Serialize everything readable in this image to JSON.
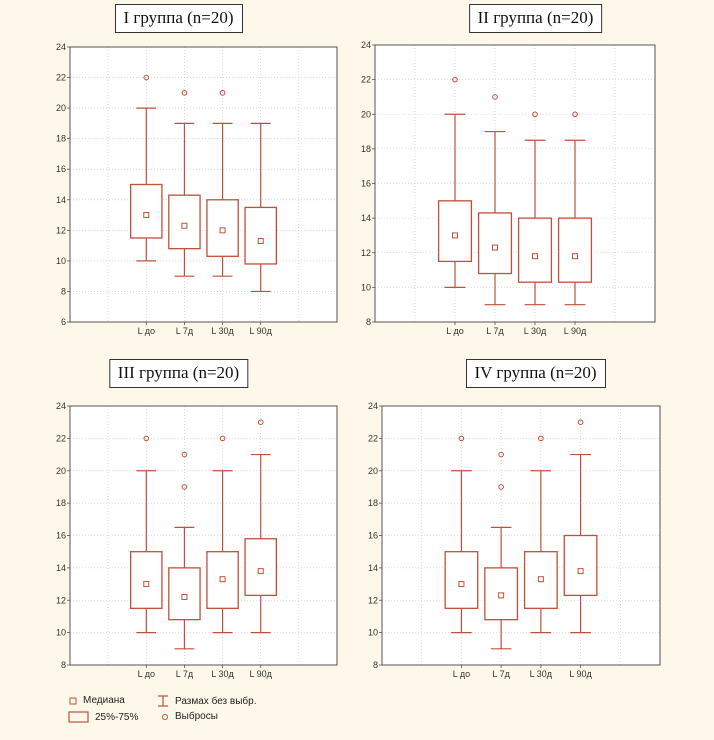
{
  "chart_data": [
    {
      "type": "boxplot",
      "title": "I группа (n=20)",
      "categories": [
        "L до",
        "L 7д",
        "L 30д",
        "L 90д"
      ],
      "ylim": [
        6,
        24
      ],
      "yticks": [
        6,
        8,
        10,
        12,
        14,
        16,
        18,
        20,
        22,
        24
      ],
      "grid": true,
      "boxes": [
        {
          "median": 13,
          "q1": 11.5,
          "q3": 15,
          "min": 10,
          "max": 20,
          "outliers": [
            22
          ]
        },
        {
          "median": 12.3,
          "q1": 10.8,
          "q3": 14.3,
          "min": 9,
          "max": 19,
          "outliers": [
            21
          ]
        },
        {
          "median": 12,
          "q1": 10.3,
          "q3": 14,
          "min": 9,
          "max": 19,
          "outliers": [
            21
          ]
        },
        {
          "median": 11.3,
          "q1": 9.8,
          "q3": 13.5,
          "min": 8,
          "max": 19,
          "outliers": []
        }
      ]
    },
    {
      "type": "boxplot",
      "title": "II группа (n=20)",
      "categories": [
        "L до",
        "L 7д",
        "L 30д",
        "L 90д"
      ],
      "ylim": [
        8,
        24
      ],
      "yticks": [
        8,
        10,
        12,
        14,
        16,
        18,
        20,
        22,
        24
      ],
      "grid": true,
      "boxes": [
        {
          "median": 13,
          "q1": 11.5,
          "q3": 15,
          "min": 10,
          "max": 20,
          "outliers": [
            22
          ]
        },
        {
          "median": 12.3,
          "q1": 10.8,
          "q3": 14.3,
          "min": 9,
          "max": 19,
          "outliers": [
            21
          ]
        },
        {
          "median": 11.8,
          "q1": 10.3,
          "q3": 14,
          "min": 9,
          "max": 18.5,
          "outliers": [
            20
          ]
        },
        {
          "median": 11.8,
          "q1": 10.3,
          "q3": 14,
          "min": 9,
          "max": 18.5,
          "outliers": [
            20
          ]
        }
      ]
    },
    {
      "type": "boxplot",
      "title": "III группа (n=20)",
      "categories": [
        "L до",
        "L 7д",
        "L 30д",
        "L 90д"
      ],
      "ylim": [
        8,
        24
      ],
      "yticks": [
        8,
        10,
        12,
        14,
        16,
        18,
        20,
        22,
        24
      ],
      "grid": true,
      "boxes": [
        {
          "median": 13,
          "q1": 11.5,
          "q3": 15,
          "min": 10,
          "max": 20,
          "outliers": [
            22
          ]
        },
        {
          "median": 12.2,
          "q1": 10.8,
          "q3": 14,
          "min": 9,
          "max": 16.5,
          "outliers": [
            19,
            21
          ]
        },
        {
          "median": 13.3,
          "q1": 11.5,
          "q3": 15,
          "min": 10,
          "max": 20,
          "outliers": [
            22
          ]
        },
        {
          "median": 13.8,
          "q1": 12.3,
          "q3": 15.8,
          "min": 10,
          "max": 21,
          "outliers": [
            23
          ]
        }
      ]
    },
    {
      "type": "boxplot",
      "title": "IV группа (n=20)",
      "categories": [
        "L до",
        "L 7д",
        "L 30д",
        "L 90д"
      ],
      "ylim": [
        8,
        24
      ],
      "yticks": [
        8,
        10,
        12,
        14,
        16,
        18,
        20,
        22,
        24
      ],
      "grid": true,
      "boxes": [
        {
          "median": 13,
          "q1": 11.5,
          "q3": 15,
          "min": 10,
          "max": 20,
          "outliers": [
            22
          ]
        },
        {
          "median": 12.3,
          "q1": 10.8,
          "q3": 14,
          "min": 9,
          "max": 16.5,
          "outliers": [
            19,
            21
          ]
        },
        {
          "median": 13.3,
          "q1": 11.5,
          "q3": 15,
          "min": 10,
          "max": 20,
          "outliers": [
            22
          ]
        },
        {
          "median": 13.8,
          "q1": 12.3,
          "q3": 16,
          "min": 10,
          "max": 21,
          "outliers": [
            23
          ]
        }
      ]
    }
  ],
  "legend": {
    "median": "Медиана",
    "box": "25%-75%",
    "range": "Размах без выбр.",
    "outliers": "Выбросы"
  },
  "colors": {
    "box": "#c0503a",
    "grid": "#bfbfbf",
    "axis": "#555555",
    "background": "#fdf8ea"
  }
}
